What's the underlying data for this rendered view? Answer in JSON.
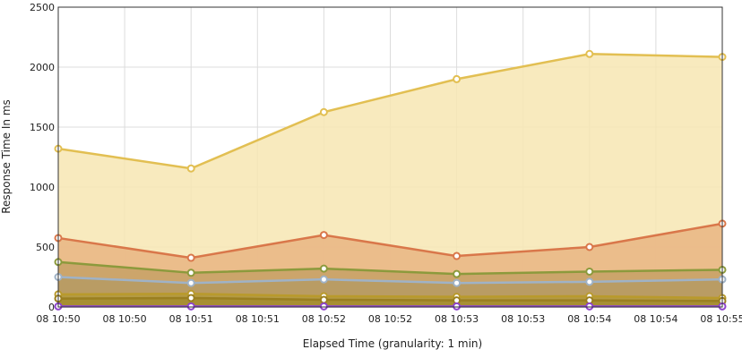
{
  "chart_data": {
    "type": "area",
    "title": "",
    "xlabel": "Elapsed Time (granularity: 1 min)",
    "ylabel": "Response Time In ms",
    "ylim": [
      0,
      2500
    ],
    "y_ticks": [
      0,
      500,
      1000,
      1500,
      2000,
      2500
    ],
    "x_tick_labels": [
      "08 10:50",
      "08 10:50",
      "08 10:51",
      "08 10:51",
      "08 10:52",
      "08 10:52",
      "08 10:53",
      "08 10:53",
      "08 10:54",
      "08 10:54",
      "08 10:55"
    ],
    "grid": true,
    "legend": "none",
    "x": [
      "08 10:50",
      "08 10:51",
      "08 10:52",
      "08 10:53",
      "08 10:54",
      "08 10:55"
    ],
    "series": [
      {
        "color": "#e2bf52",
        "fill": "#f7e6b3",
        "values": [
          1320,
          1155,
          1625,
          1900,
          2110,
          2085
        ]
      },
      {
        "color": "#d9774a",
        "fill": "#e9b583",
        "values": [
          575,
          410,
          600,
          425,
          500,
          695
        ]
      },
      {
        "color": "#8c9a3c",
        "fill": "#c7a165",
        "values": [
          375,
          285,
          320,
          275,
          295,
          310
        ]
      },
      {
        "color": "#9fb2c6",
        "fill": "#b59a63",
        "values": [
          250,
          200,
          230,
          200,
          210,
          230
        ]
      },
      {
        "color": "#b99a2c",
        "fill": "#b39a3d",
        "values": [
          105,
          110,
          90,
          85,
          90,
          75
        ]
      },
      {
        "color": "#9a7f20",
        "fill": "#a58d2f",
        "values": [
          70,
          75,
          60,
          55,
          55,
          50
        ]
      },
      {
        "color": "#8e44cc",
        "fill": "#9b59b6",
        "values": [
          5,
          5,
          5,
          5,
          5,
          5
        ]
      }
    ]
  }
}
